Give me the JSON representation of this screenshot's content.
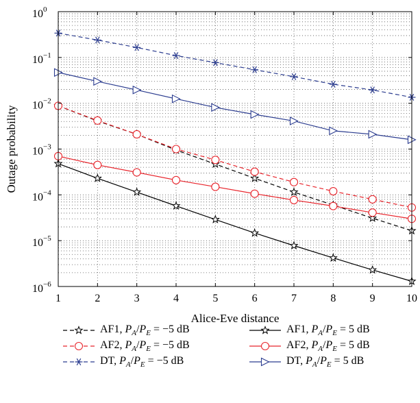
{
  "chart_data": {
    "type": "line",
    "xlabel": "Alice-Eve distance",
    "ylabel": "Outage probability",
    "xlim": [
      1,
      10
    ],
    "ylim": [
      1e-06,
      1
    ],
    "yscale": "log",
    "grid": true,
    "x": [
      1,
      2,
      3,
      4,
      5,
      6,
      7,
      8,
      9,
      10
    ],
    "x_ticks": [
      "1",
      "2",
      "3",
      "4",
      "5",
      "6",
      "7",
      "8",
      "9",
      "10"
    ],
    "y_ticks": [
      {
        "base": "10",
        "exp": "0"
      },
      {
        "base": "10",
        "exp": "−1"
      },
      {
        "base": "10",
        "exp": "−2"
      },
      {
        "base": "10",
        "exp": "−3"
      },
      {
        "base": "10",
        "exp": "−4"
      },
      {
        "base": "10",
        "exp": "−5"
      },
      {
        "base": "10",
        "exp": "−6"
      }
    ],
    "legend_position": "bottom",
    "series": [
      {
        "name": "AF1, P_A/P_E = −5 dB",
        "label_prefix": "AF1,",
        "label_value": "−5 dB",
        "color": "#000000",
        "dash": true,
        "marker": "star",
        "values": [
          0.0088,
          0.0041,
          0.0021,
          0.00095,
          0.00047,
          0.00023,
          0.000115,
          6e-05,
          3.1e-05,
          1.65e-05
        ]
      },
      {
        "name": "AF2, P_A/P_E = −5 dB",
        "label_prefix": "AF2,",
        "label_value": "−5 dB",
        "color": "#e8232a",
        "dash": true,
        "marker": "circle",
        "values": [
          0.0088,
          0.0042,
          0.0021,
          0.001,
          0.00058,
          0.00032,
          0.00019,
          0.00012,
          8e-05,
          5.3e-05
        ]
      },
      {
        "name": "DT, P_A/P_E = −5 dB",
        "label_prefix": "DT,",
        "label_value": "−5 dB",
        "color": "#2b3c8f",
        "dash": true,
        "marker": "asterisk",
        "values": [
          0.34,
          0.24,
          0.165,
          0.11,
          0.077,
          0.054,
          0.038,
          0.026,
          0.0195,
          0.0135
        ]
      },
      {
        "name": "AF1, P_A/P_E = 5 dB",
        "label_prefix": "AF1,",
        "label_value": "5 dB",
        "color": "#000000",
        "dash": false,
        "marker": "star",
        "values": [
          0.00048,
          0.00023,
          0.000115,
          5.75e-05,
          2.9e-05,
          1.47e-05,
          7.8e-06,
          4.2e-06,
          2.3e-06,
          1.3e-06
        ]
      },
      {
        "name": "AF2, P_A/P_E = 5 dB",
        "label_prefix": "AF2,",
        "label_value": "5 dB",
        "color": "#e8232a",
        "dash": false,
        "marker": "circle",
        "values": [
          0.0007,
          0.00045,
          0.00031,
          0.00021,
          0.00015,
          0.000106,
          7.7e-05,
          5.7e-05,
          4.1e-05,
          3e-05
        ]
      },
      {
        "name": "DT, P_A/P_E = 5 dB",
        "label_prefix": "DT,",
        "label_value": "5 dB",
        "color": "#2b3c8f",
        "dash": false,
        "marker": "triangle-right",
        "values": [
          0.047,
          0.03,
          0.0195,
          0.0125,
          0.0081,
          0.0057,
          0.0041,
          0.0025,
          0.0021,
          0.0016
        ]
      }
    ]
  }
}
